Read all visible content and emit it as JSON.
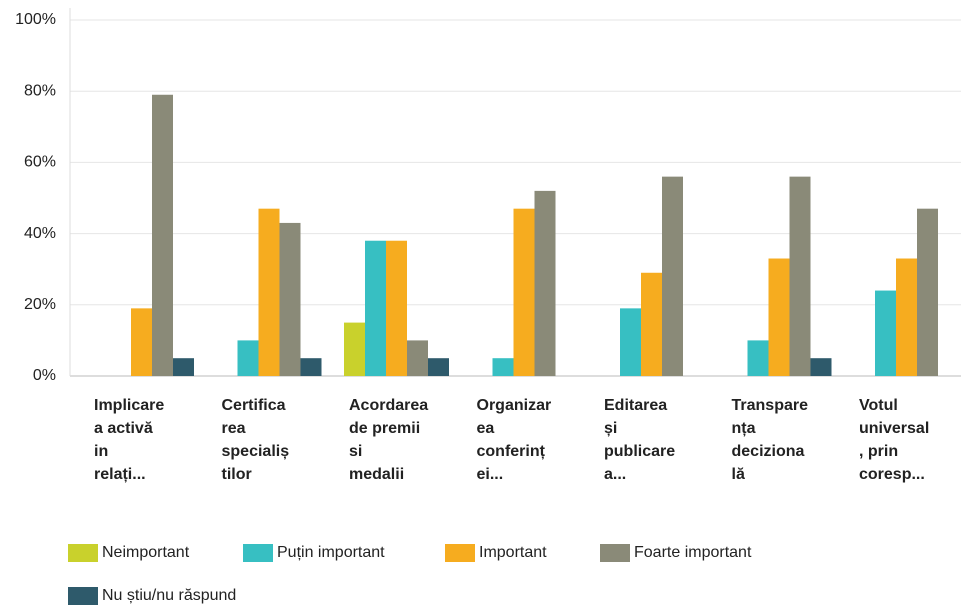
{
  "chart_data": {
    "type": "bar",
    "categories": [
      [
        "Implicare",
        "a activă",
        "in",
        "relați..."
      ],
      [
        "Certifica",
        "rea",
        "specialiș",
        "tilor"
      ],
      [
        "Acordarea",
        "de premii",
        "si",
        "medalii"
      ],
      [
        "Organizar",
        "ea",
        "conferinț",
        "ei..."
      ],
      [
        "Editarea",
        "și",
        "publicare",
        "a..."
      ],
      [
        "Transpare",
        "nța",
        "deciziona",
        "lă"
      ],
      [
        "Votul",
        "universal",
        ", prin",
        "coresp..."
      ]
    ],
    "series": [
      {
        "name": "Neimportant",
        "color": "#c9d12c",
        "values": [
          0,
          0,
          15,
          0,
          0,
          0,
          0
        ]
      },
      {
        "name": "Puțin important",
        "color": "#37bfc2",
        "values": [
          0,
          10,
          38,
          5,
          19,
          10,
          24
        ]
      },
      {
        "name": "Important",
        "color": "#f6ac1f",
        "values": [
          19,
          47,
          38,
          47,
          29,
          33,
          33
        ]
      },
      {
        "name": "Foarte important",
        "color": "#8a8a78",
        "values": [
          79,
          43,
          10,
          52,
          56,
          56,
          47
        ]
      },
      {
        "name": "Nu știu/nu răspund",
        "color": "#2e5a6b",
        "values": [
          5,
          5,
          5,
          0,
          0,
          5,
          0
        ]
      }
    ],
    "ylim": [
      0,
      100
    ],
    "yticks": [
      {
        "value": 0,
        "label": "0%"
      },
      {
        "value": 20,
        "label": "20%"
      },
      {
        "value": 40,
        "label": "40%"
      },
      {
        "value": 60,
        "label": "60%"
      },
      {
        "value": 80,
        "label": "80%"
      },
      {
        "value": 100,
        "label": "100%"
      }
    ],
    "grid": true
  }
}
